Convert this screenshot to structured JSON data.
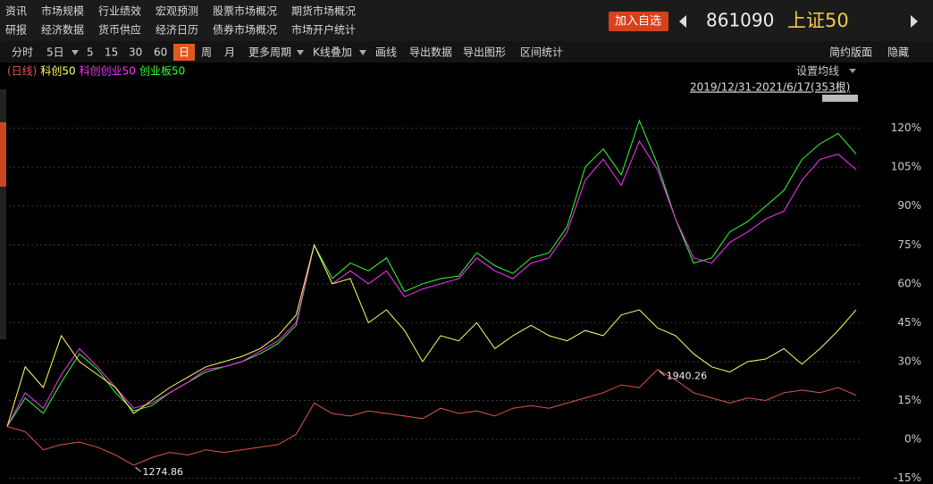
{
  "menu": {
    "row1": [
      "资讯",
      "市场规模",
      "行业绩效",
      "宏观预测",
      "股票市场概况",
      "期货市场概况"
    ],
    "row2": [
      "研报",
      "经济数据",
      "货币供应",
      "经济日历",
      "债券市场概况",
      "市场开户统计"
    ]
  },
  "header": {
    "add_button": "加入自选",
    "code": "861090",
    "name": "上证50"
  },
  "toolbar": {
    "items": [
      "分时",
      "5日",
      "5",
      "15",
      "30",
      "60",
      "日",
      "周",
      "月",
      "更多周期",
      "K线叠加",
      "画线",
      "导出数据",
      "导出图形",
      "区间统计"
    ],
    "right": [
      "简约版面",
      "隐藏"
    ]
  },
  "settings_button": "设置均线",
  "range_label": "2019/12/31-2021/6/17(353根)",
  "chart_data": {
    "type": "line",
    "ylim": [
      -16.5,
      135
    ],
    "yticks": [
      {
        "value": 120,
        "label": "120%"
      },
      {
        "value": 105,
        "label": "105%"
      },
      {
        "value": 90,
        "label": "90%"
      },
      {
        "value": 75,
        "label": "75%"
      },
      {
        "value": 60,
        "label": "60%"
      },
      {
        "value": 45,
        "label": "45%"
      },
      {
        "value": 30,
        "label": "30%"
      },
      {
        "value": 15,
        "label": "15%"
      },
      {
        "value": 0,
        "label": "0%"
      },
      {
        "value": -15,
        "label": "-15%"
      }
    ],
    "grid": true,
    "annotations": [
      "1274.86",
      "1940.26"
    ],
    "series": [
      {
        "name": "(日线)",
        "color": "#e0574f",
        "values": [
          5,
          3,
          -4,
          -2,
          -1,
          -3,
          -6,
          -10,
          -7,
          -5,
          -6,
          -4,
          -5,
          -4,
          -3,
          -2,
          2,
          14,
          10,
          9,
          11,
          10,
          9,
          8,
          12,
          10,
          11,
          9,
          12,
          13,
          12,
          14,
          16,
          18,
          21,
          20,
          27,
          23,
          18,
          16,
          14,
          16,
          15,
          18,
          19,
          18,
          20,
          17
        ]
      },
      {
        "name": "科创50",
        "color": "#ffff66",
        "values": [
          5,
          28,
          20,
          40,
          30,
          25,
          20,
          10,
          15,
          20,
          24,
          28,
          30,
          32,
          35,
          40,
          48,
          75,
          60,
          62,
          45,
          50,
          42,
          30,
          40,
          38,
          45,
          35,
          40,
          44,
          40,
          38,
          42,
          40,
          48,
          50,
          43,
          40,
          33,
          28,
          26,
          30,
          31,
          35,
          29,
          35,
          42,
          50
        ]
      },
      {
        "name": "科创创业50",
        "color": "#ff33ff",
        "values": [
          5,
          18,
          12,
          25,
          35,
          28,
          20,
          12,
          14,
          18,
          22,
          27,
          28,
          30,
          34,
          38,
          45,
          75,
          60,
          65,
          60,
          65,
          55,
          58,
          60,
          62,
          70,
          65,
          62,
          68,
          70,
          80,
          100,
          108,
          98,
          115,
          104,
          85,
          70,
          68,
          76,
          80,
          85,
          88,
          100,
          108,
          110,
          104
        ]
      },
      {
        "name": "创业板50",
        "color": "#33ff33",
        "values": [
          5,
          16,
          10,
          22,
          33,
          27,
          18,
          11,
          13,
          18,
          22,
          26,
          28,
          30,
          33,
          37,
          44,
          75,
          62,
          68,
          65,
          70,
          57,
          60,
          62,
          63,
          72,
          67,
          64,
          70,
          72,
          82,
          105,
          112,
          102,
          123,
          106,
          85,
          68,
          70,
          80,
          84,
          90,
          96,
          108,
          114,
          118,
          110
        ]
      }
    ]
  }
}
